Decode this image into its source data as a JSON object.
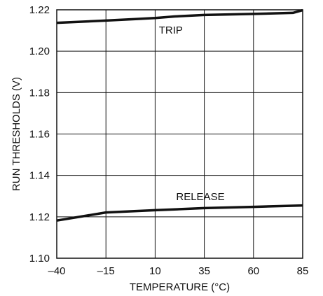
{
  "chart_data": {
    "type": "line",
    "title": "",
    "xlabel": "TEMPERATURE (°C)",
    "ylabel": "RUN THRESHOLDS (V)",
    "xlim": [
      -40,
      85
    ],
    "ylim": [
      1.1,
      1.22
    ],
    "x_ticks": [
      -40,
      -15,
      10,
      35,
      60,
      85
    ],
    "x_tick_labels": [
      "–40",
      "–15",
      "10",
      "35",
      "60",
      "85"
    ],
    "y_ticks": [
      1.1,
      1.12,
      1.14,
      1.16,
      1.18,
      1.2,
      1.22
    ],
    "y_tick_labels": [
      "1.10",
      "1.12",
      "1.14",
      "1.16",
      "1.18",
      "1.20",
      "1.22"
    ],
    "grid": true,
    "series": [
      {
        "name": "TRIP",
        "x": [
          -40,
          -15,
          0,
          10,
          20,
          35,
          60,
          80,
          85
        ],
        "y": [
          1.2137,
          1.2148,
          1.2155,
          1.216,
          1.2168,
          1.2175,
          1.218,
          1.2185,
          1.2198
        ]
      },
      {
        "name": "RELEASE",
        "x": [
          -40,
          -15,
          10,
          35,
          60,
          85
        ],
        "y": [
          1.1182,
          1.1221,
          1.1232,
          1.1242,
          1.1248,
          1.1255
        ]
      }
    ],
    "annotations": [
      {
        "text": "TRIP",
        "series": "TRIP",
        "x": 18,
        "y": 1.2085
      },
      {
        "text": "RELEASE",
        "series": "RELEASE",
        "x": 33,
        "y": 1.1281
      }
    ],
    "colors": {
      "line": "#111111",
      "grid": "#111111",
      "background": "#ffffff"
    }
  }
}
